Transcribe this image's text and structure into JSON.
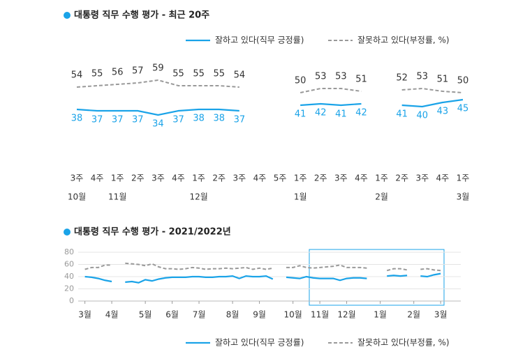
{
  "chart_data": [
    {
      "type": "line",
      "title": "대통령 직무 수행 평가 - 최근 20주",
      "categories": [
        "3주",
        "4주",
        "1주",
        "2주",
        "3주",
        "4주",
        "1주",
        "2주",
        "3주",
        "4주",
        "5주",
        "1주",
        "2주",
        "3주",
        "4주",
        "1주",
        "2주",
        "3주",
        "4주",
        "1주"
      ],
      "month_labels": [
        "10월",
        null,
        "11월",
        null,
        null,
        null,
        "12월",
        null,
        null,
        null,
        null,
        "1월",
        null,
        null,
        null,
        "2월",
        null,
        null,
        null,
        "3월"
      ],
      "series": [
        {
          "name": "잘하고 있다(직무 긍정률)",
          "color": "#1aa3e8",
          "dashed": false,
          "values": [
            38,
            37,
            37,
            37,
            34,
            37,
            38,
            38,
            37,
            null,
            null,
            41,
            42,
            41,
            42,
            null,
            41,
            40,
            43,
            45
          ]
        },
        {
          "name": "잘못하고 있다(부정률, %)",
          "color": "#999999",
          "dashed": true,
          "values": [
            54,
            55,
            56,
            57,
            59,
            55,
            55,
            55,
            54,
            null,
            null,
            50,
            53,
            53,
            51,
            null,
            52,
            53,
            51,
            50
          ]
        }
      ]
    },
    {
      "type": "line",
      "title": "대통령 직무 수행 평가 - 2021/2022년",
      "x": [
        0,
        1,
        2,
        3,
        4,
        5,
        6,
        7,
        8,
        9,
        10,
        11,
        12,
        13,
        14,
        15,
        16,
        17,
        18,
        19,
        20,
        21,
        22,
        23,
        24,
        25,
        26,
        27,
        28,
        29,
        30,
        31,
        32,
        33,
        34,
        35,
        36,
        37,
        38,
        39,
        40,
        41,
        42,
        43,
        44,
        45,
        46,
        47,
        48,
        49,
        50,
        51,
        52,
        53
      ],
      "series": [
        {
          "name": "잘하고 있다(직무 긍정률)",
          "color": "#1aa3e8",
          "dashed": false,
          "values": [
            40,
            39,
            37,
            34,
            32,
            null,
            31,
            32,
            30,
            35,
            33,
            36,
            38,
            39,
            39,
            39,
            40,
            40,
            39,
            39,
            40,
            40,
            41,
            37,
            41,
            40,
            40,
            41,
            36,
            null,
            39,
            38,
            37,
            40,
            38,
            37,
            37,
            37,
            34,
            37,
            38,
            38,
            37,
            null,
            null,
            41,
            42,
            41,
            42,
            null,
            41,
            40,
            43,
            45
          ]
        },
        {
          "name": "잘못하고 있다(부정률, %)",
          "color": "#999999",
          "dashed": true,
          "values": [
            52,
            55,
            55,
            59,
            59,
            null,
            62,
            61,
            60,
            58,
            61,
            56,
            53,
            53,
            52,
            53,
            55,
            54,
            52,
            53,
            53,
            54,
            53,
            54,
            55,
            52,
            54,
            52,
            54,
            null,
            55,
            55,
            58,
            55,
            54,
            55,
            56,
            57,
            59,
            55,
            55,
            55,
            54,
            null,
            null,
            50,
            53,
            53,
            51,
            null,
            52,
            53,
            51,
            50
          ]
        }
      ],
      "xlim": [
        -1,
        56
      ],
      "xticks": [
        {
          "value": 0,
          "label": "3월"
        },
        {
          "value": 4,
          "label": "4월"
        },
        {
          "value": 9,
          "label": "5월"
        },
        {
          "value": 13,
          "label": "6월"
        },
        {
          "value": 17,
          "label": "7월"
        },
        {
          "value": 22,
          "label": "8월"
        },
        {
          "value": 26,
          "label": "9월"
        },
        {
          "value": 31,
          "label": "10월"
        },
        {
          "value": 35,
          "label": "11월"
        },
        {
          "value": 39,
          "label": "12월"
        },
        {
          "value": 44,
          "label": "1월"
        },
        {
          "value": 49,
          "label": "2월"
        },
        {
          "value": 53,
          "label": "3월"
        }
      ],
      "ylim": [
        0,
        80
      ],
      "yticks": [
        0,
        20,
        40,
        60,
        80
      ],
      "grid": true
    }
  ]
}
